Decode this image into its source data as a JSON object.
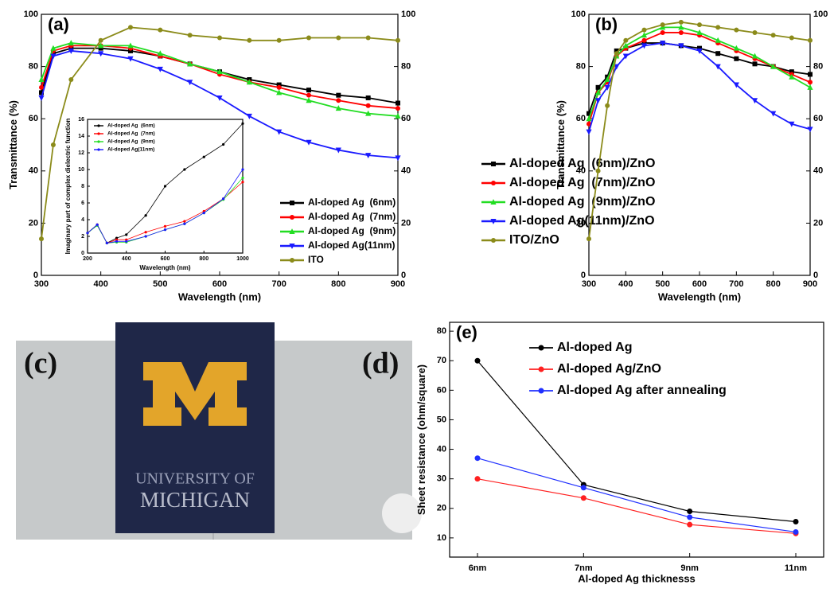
{
  "chart_data": [
    {
      "type": "line",
      "annotation": "(a)",
      "xlabel": "Wavelength (nm)",
      "ylabel": "Transmittance (%)",
      "x": [
        300,
        320,
        350,
        400,
        450,
        500,
        550,
        600,
        650,
        700,
        750,
        800,
        850,
        900
      ],
      "series": [
        {
          "name": "Al-doped Ag  (6nm)",
          "color": "#000000",
          "marker": "square",
          "values": [
            70,
            85,
            87,
            87,
            86,
            84,
            81,
            78,
            75,
            73,
            71,
            69,
            68,
            66
          ]
        },
        {
          "name": "Al-doped Ag  (7nm)",
          "color": "#ff0000",
          "marker": "circle",
          "values": [
            72,
            86,
            88,
            88,
            87,
            84,
            81,
            77,
            74,
            72,
            69,
            67,
            65,
            64
          ]
        },
        {
          "name": "Al-doped Ag  (9nm)",
          "color": "#22dd22",
          "marker": "triangle-up",
          "values": [
            75,
            87,
            89,
            88,
            88,
            85,
            81,
            78,
            74,
            70,
            67,
            64,
            62,
            61
          ]
        },
        {
          "name": "Al-doped Ag(11nm)",
          "color": "#1a1aff",
          "marker": "triangle-down",
          "values": [
            68,
            84,
            86,
            85,
            83,
            79,
            74,
            68,
            61,
            55,
            51,
            48,
            46,
            45
          ]
        },
        {
          "name": "ITO",
          "color": "#8b8b1a",
          "marker": "circle",
          "values": [
            14,
            50,
            75,
            90,
            95,
            94,
            92,
            91,
            90,
            90,
            91,
            91,
            91,
            90
          ]
        }
      ],
      "xlim": [
        300,
        900
      ],
      "xticks": [
        300,
        400,
        500,
        600,
        700,
        800,
        900
      ],
      "ylim": [
        0,
        100
      ],
      "yticks": [
        0,
        20,
        40,
        60,
        80,
        100
      ],
      "y2lim": [
        0,
        100
      ],
      "y2ticks": [
        0,
        20,
        40,
        60,
        80,
        100
      ]
    },
    {
      "type": "line",
      "xlabel": "Wavelength (nm)",
      "ylabel": "Imaginary part of complex dielectric function",
      "x": [
        200,
        250,
        300,
        350,
        400,
        500,
        600,
        700,
        800,
        900,
        1000
      ],
      "series": [
        {
          "name": "Al-doped Ag  (6nm)",
          "color": "#000000",
          "marker": "circle",
          "values": [
            2.4,
            3.4,
            1.2,
            1.8,
            2.2,
            4.5,
            8,
            10,
            11.5,
            13,
            15.5
          ]
        },
        {
          "name": "Al-doped Ag  (7nm)",
          "color": "#ff0000",
          "marker": "circle",
          "values": [
            2.4,
            3.4,
            1.2,
            1.6,
            1.6,
            2.5,
            3.2,
            3.8,
            5,
            6.5,
            8.5
          ]
        },
        {
          "name": "Al-doped Ag  (9nm)",
          "color": "#22dd22",
          "marker": "circle",
          "values": [
            2.4,
            3.3,
            1.2,
            1.3,
            1.3,
            2,
            2.8,
            3.5,
            4.8,
            6.4,
            9
          ]
        },
        {
          "name": "Al-doped Ag(11nm)",
          "color": "#1a1aff",
          "marker": "circle",
          "values": [
            2.4,
            3.4,
            1.2,
            1.4,
            1.4,
            2,
            2.8,
            3.5,
            4.8,
            6.5,
            10
          ]
        }
      ],
      "xlim": [
        200,
        1000
      ],
      "xticks": [
        200,
        400,
        600,
        800,
        1000
      ],
      "ylim": [
        0,
        16
      ],
      "yticks": [
        0,
        2,
        4,
        6,
        8,
        10,
        12,
        14,
        16
      ]
    },
    {
      "type": "line",
      "annotation": "(b)",
      "xlabel": "Wavelength (nm)",
      "ylabel": "Transmittance (%)",
      "x": [
        300,
        325,
        350,
        375,
        400,
        450,
        500,
        550,
        600,
        650,
        700,
        750,
        800,
        850,
        900
      ],
      "series": [
        {
          "name": "Al-doped Ag  (6nm)/ZnO",
          "color": "#000000",
          "marker": "square",
          "values": [
            62,
            72,
            76,
            86,
            87,
            89,
            89,
            88,
            87,
            85,
            83,
            81,
            80,
            78,
            77
          ]
        },
        {
          "name": "Al-doped Ag  (7nm)/ZnO",
          "color": "#ff0000",
          "marker": "circle",
          "values": [
            58,
            70,
            74,
            84,
            87,
            90,
            93,
            93,
            92,
            89,
            86,
            83,
            80,
            77,
            74
          ]
        },
        {
          "name": "Al-doped Ag  (9nm)/ZnO",
          "color": "#22dd22",
          "marker": "triangle-up",
          "values": [
            60,
            70,
            75,
            84,
            88,
            92,
            95,
            95,
            93,
            90,
            87,
            84,
            80,
            76,
            72
          ]
        },
        {
          "name": "Al-doped Ag(11nm)/ZnO",
          "color": "#1a1aff",
          "marker": "triangle-down",
          "values": [
            55,
            67,
            72,
            80,
            84,
            88,
            89,
            88,
            86,
            80,
            73,
            67,
            62,
            58,
            56
          ]
        },
        {
          "name": "ITO/ZnO",
          "color": "#8b8b1a",
          "marker": "circle",
          "values": [
            14,
            40,
            65,
            85,
            90,
            94,
            96,
            97,
            96,
            95,
            94,
            93,
            92,
            91,
            90
          ]
        }
      ],
      "xlim": [
        300,
        900
      ],
      "xticks": [
        300,
        400,
        500,
        600,
        700,
        800,
        900
      ],
      "ylim": [
        0,
        100
      ],
      "yticks": [
        0,
        20,
        40,
        60,
        80,
        100
      ],
      "y2lim": [
        0,
        100
      ],
      "y2ticks": [
        0,
        20,
        40,
        60,
        80,
        100
      ]
    },
    {
      "type": "line",
      "annotation": "(e)",
      "xlabel": "Al-doped Ag thicknesss",
      "ylabel": "Sheet resistance (ohm/square)",
      "categories": [
        "6nm",
        "7nm",
        "9nm",
        "11nm"
      ],
      "series": [
        {
          "name": "Al-doped Ag",
          "color": "#000000",
          "marker": "circle",
          "values": [
            70,
            28,
            19,
            15.5
          ]
        },
        {
          "name": "Al-doped Ag/ZnO",
          "color": "#ff2020",
          "marker": "circle",
          "values": [
            30,
            23.5,
            14.5,
            11.5
          ]
        },
        {
          "name": "Al-doped Ag after annealing",
          "color": "#2030ff",
          "marker": "circle",
          "values": [
            37,
            27,
            17,
            12
          ]
        }
      ],
      "ylim": [
        3.5,
        83
      ],
      "yticks": [
        10,
        20,
        30,
        40,
        50,
        60,
        70,
        80
      ]
    }
  ],
  "photo": {
    "labels": [
      "(c)",
      "(d)"
    ],
    "logo_text": [
      "UNIVERSITY OF",
      "MICHIGAN"
    ]
  }
}
